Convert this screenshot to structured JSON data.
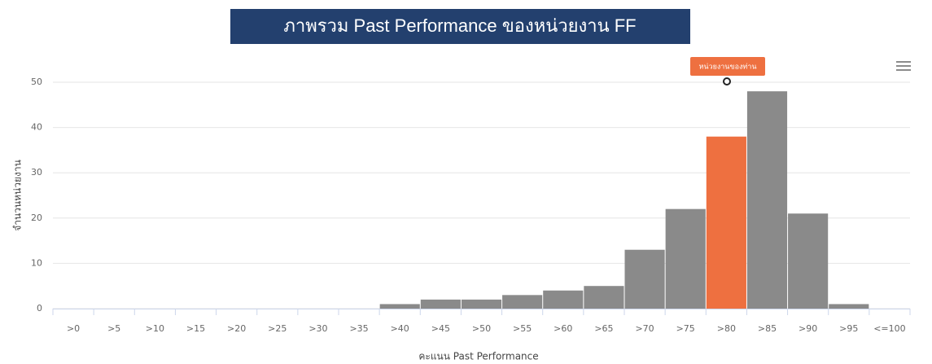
{
  "chart_data": {
    "type": "bar",
    "title": "ภาพรวม Past Performance ของหน่วยงาน FF",
    "x_label": "คะแนน Past Performance",
    "y_label": "จำนวนหน่วยงาน",
    "annotation": "หน่วยงานของท่าน",
    "categories": [
      ">0",
      ">5",
      ">10",
      ">15",
      ">20",
      ">25",
      ">30",
      ">35",
      ">40",
      ">45",
      ">50",
      ">55",
      ">60",
      ">65",
      ">70",
      ">75",
      ">80",
      ">85",
      ">90",
      ">95",
      "<=100"
    ],
    "values": [
      0,
      0,
      0,
      0,
      0,
      0,
      0,
      0,
      1,
      2,
      2,
      3,
      4,
      5,
      13,
      22,
      38,
      48,
      21,
      1,
      0
    ],
    "colors": [
      "#8a8a8a",
      "#8a8a8a",
      "#8a8a8a",
      "#8a8a8a",
      "#8a8a8a",
      "#8a8a8a",
      "#8a8a8a",
      "#8a8a8a",
      "#8a8a8a",
      "#8a8a8a",
      "#8a8a8a",
      "#8a8a8a",
      "#8a8a8a",
      "#8a8a8a",
      "#8a8a8a",
      "#8a8a8a",
      "#ee7040",
      "#8a8a8a",
      "#8a8a8a",
      "#8a8a8a",
      "#8a8a8a"
    ],
    "ylim": [
      0,
      50
    ],
    "yticks": [
      0,
      10,
      20,
      30,
      40,
      50
    ],
    "grid": true
  }
}
